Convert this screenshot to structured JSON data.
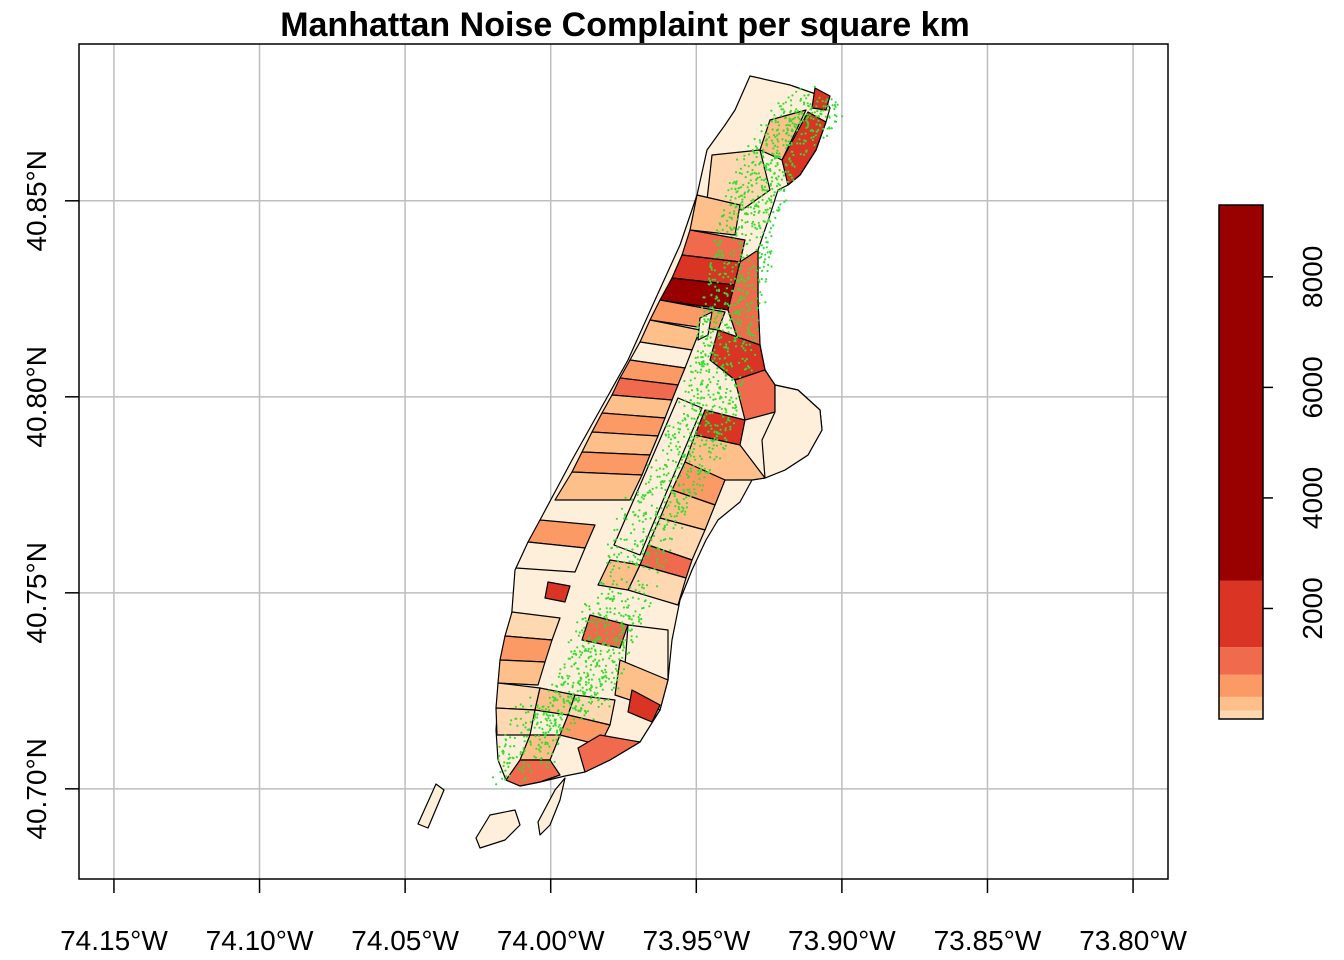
{
  "title": "Manhattan Noise Complaint per square km",
  "axes": {
    "x_ticks": [
      {
        "value": -74.15,
        "label": "74.15°W"
      },
      {
        "value": -74.1,
        "label": "74.10°W"
      },
      {
        "value": -74.05,
        "label": "74.05°W"
      },
      {
        "value": -74.0,
        "label": "74.00°W"
      },
      {
        "value": -73.95,
        "label": "73.95°W"
      },
      {
        "value": -73.9,
        "label": "73.90°W"
      },
      {
        "value": -73.85,
        "label": "73.85°W"
      },
      {
        "value": -73.8,
        "label": "73.80°W"
      }
    ],
    "y_ticks": [
      {
        "value": 40.7,
        "label": "40.70°N"
      },
      {
        "value": 40.75,
        "label": "40.75°N"
      },
      {
        "value": 40.8,
        "label": "40.80°N"
      },
      {
        "value": 40.85,
        "label": "40.85°N"
      }
    ],
    "xlim": [
      -74.162,
      -73.788
    ],
    "ylim": [
      40.677,
      40.89
    ],
    "grid": true
  },
  "legend": {
    "position": "right",
    "ticks": [
      {
        "value": 2000,
        "label": "2000"
      },
      {
        "value": 4000,
        "label": "4000"
      },
      {
        "value": 6000,
        "label": "6000"
      },
      {
        "value": 8000,
        "label": "8000"
      }
    ],
    "range": [
      0,
      9300
    ],
    "bins": [
      {
        "from": 0,
        "to": 150,
        "color": "#fdd8b0"
      },
      {
        "from": 150,
        "to": 400,
        "color": "#fdc08a"
      },
      {
        "from": 400,
        "to": 800,
        "color": "#fc9a66"
      },
      {
        "from": 800,
        "to": 1300,
        "color": "#f06a4e"
      },
      {
        "from": 1300,
        "to": 2500,
        "color": "#d93424"
      },
      {
        "from": 2500,
        "to": 9300,
        "color": "#990000"
      }
    ]
  },
  "colors": {
    "fill_levels": [
      "#fdefd9",
      "#fdd8b0",
      "#fdc08a",
      "#fc9a66",
      "#f06a4e",
      "#d93424",
      "#990000"
    ],
    "complaint_points": "#33dd33",
    "grid": "#bebebe"
  }
}
